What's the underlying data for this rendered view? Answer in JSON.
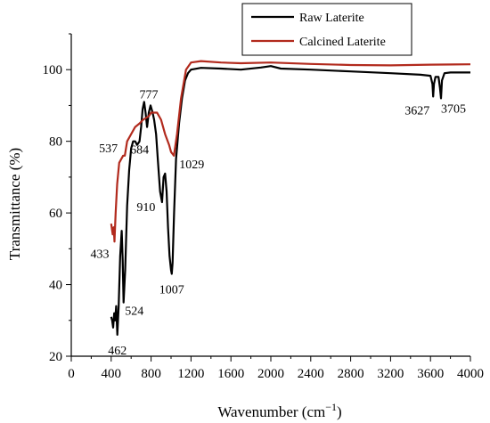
{
  "chart_data": {
    "type": "line",
    "title": "",
    "xlabel": "Wavenumber (cm",
    "xlabel_sup": "−1",
    "xlabel_close": ")",
    "ylabel": "Transmittance (%)",
    "xlim": [
      0,
      4000
    ],
    "ylim": [
      20,
      110
    ],
    "grid": false,
    "legend_position": "top-right",
    "x_ticks": [
      0,
      400,
      800,
      1200,
      1600,
      2000,
      2400,
      2800,
      3200,
      3600,
      4000
    ],
    "y_ticks": [
      20,
      40,
      60,
      80,
      100
    ],
    "series": [
      {
        "name": "Raw Laterite",
        "color": "#000000",
        "points": [
          [
            400,
            31
          ],
          [
            410,
            30
          ],
          [
            420,
            28
          ],
          [
            430,
            32
          ],
          [
            440,
            30
          ],
          [
            450,
            34
          ],
          [
            462,
            26
          ],
          [
            475,
            34
          ],
          [
            490,
            48
          ],
          [
            505,
            55
          ],
          [
            515,
            47
          ],
          [
            524,
            35
          ],
          [
            540,
            44
          ],
          [
            560,
            62
          ],
          [
            580,
            72
          ],
          [
            600,
            78
          ],
          [
            620,
            80
          ],
          [
            640,
            80
          ],
          [
            660,
            79
          ],
          [
            684,
            80
          ],
          [
            700,
            84
          ],
          [
            715,
            89
          ],
          [
            730,
            91
          ],
          [
            745,
            88
          ],
          [
            760,
            84
          ],
          [
            777,
            88
          ],
          [
            795,
            90
          ],
          [
            815,
            88
          ],
          [
            830,
            86
          ],
          [
            850,
            82
          ],
          [
            870,
            74
          ],
          [
            890,
            66
          ],
          [
            910,
            63
          ],
          [
            925,
            70
          ],
          [
            940,
            71
          ],
          [
            955,
            66
          ],
          [
            970,
            56
          ],
          [
            985,
            48
          ],
          [
            1000,
            44
          ],
          [
            1007,
            43
          ],
          [
            1015,
            46
          ],
          [
            1030,
            60
          ],
          [
            1050,
            75
          ],
          [
            1080,
            85
          ],
          [
            1110,
            92
          ],
          [
            1140,
            97
          ],
          [
            1170,
            99
          ],
          [
            1200,
            100
          ],
          [
            1300,
            100.5
          ],
          [
            1500,
            100.3
          ],
          [
            1700,
            100
          ],
          [
            1900,
            100.6
          ],
          [
            2000,
            101
          ],
          [
            2100,
            100.3
          ],
          [
            2400,
            100
          ],
          [
            2800,
            99.5
          ],
          [
            3200,
            99
          ],
          [
            3500,
            98.6
          ],
          [
            3600,
            98.3
          ],
          [
            3620,
            96
          ],
          [
            3627,
            92.5
          ],
          [
            3635,
            96
          ],
          [
            3650,
            98
          ],
          [
            3680,
            98
          ],
          [
            3695,
            95
          ],
          [
            3705,
            92
          ],
          [
            3715,
            97
          ],
          [
            3740,
            99
          ],
          [
            3800,
            99.2
          ],
          [
            4000,
            99.2
          ]
        ]
      },
      {
        "name": "Calcined Laterite",
        "color": "#b22a1d",
        "points": [
          [
            400,
            57
          ],
          [
            415,
            54
          ],
          [
            425,
            56
          ],
          [
            433,
            52
          ],
          [
            445,
            60
          ],
          [
            460,
            68
          ],
          [
            480,
            74
          ],
          [
            500,
            75
          ],
          [
            520,
            76
          ],
          [
            537,
            76
          ],
          [
            560,
            80
          ],
          [
            600,
            82
          ],
          [
            640,
            84
          ],
          [
            684,
            85
          ],
          [
            720,
            86
          ],
          [
            777,
            87
          ],
          [
            800,
            88
          ],
          [
            860,
            88
          ],
          [
            900,
            86
          ],
          [
            940,
            82
          ],
          [
            980,
            79
          ],
          [
            1000,
            77
          ],
          [
            1029,
            76
          ],
          [
            1060,
            82
          ],
          [
            1100,
            92
          ],
          [
            1150,
            100
          ],
          [
            1200,
            102
          ],
          [
            1300,
            102.4
          ],
          [
            1500,
            102
          ],
          [
            1700,
            101.8
          ],
          [
            2000,
            102
          ],
          [
            2400,
            101.6
          ],
          [
            2800,
            101.3
          ],
          [
            3200,
            101.2
          ],
          [
            3600,
            101.4
          ],
          [
            4000,
            101.5
          ]
        ]
      }
    ],
    "annotations": [
      {
        "text": "462",
        "x": 462,
        "y": 26
      },
      {
        "text": "524",
        "x": 524,
        "y": 35
      },
      {
        "text": "433",
        "x": 433,
        "y": 52
      },
      {
        "text": "537",
        "x": 537,
        "y": 76
      },
      {
        "text": "684",
        "x": 684,
        "y": 80
      },
      {
        "text": "777",
        "x": 777,
        "y": 88
      },
      {
        "text": "910",
        "x": 910,
        "y": 63
      },
      {
        "text": "1007",
        "x": 1007,
        "y": 43
      },
      {
        "text": "1029",
        "x": 1029,
        "y": 76
      },
      {
        "text": "3627",
        "x": 3627,
        "y": 92.5
      },
      {
        "text": "3705",
        "x": 3705,
        "y": 92
      }
    ]
  }
}
